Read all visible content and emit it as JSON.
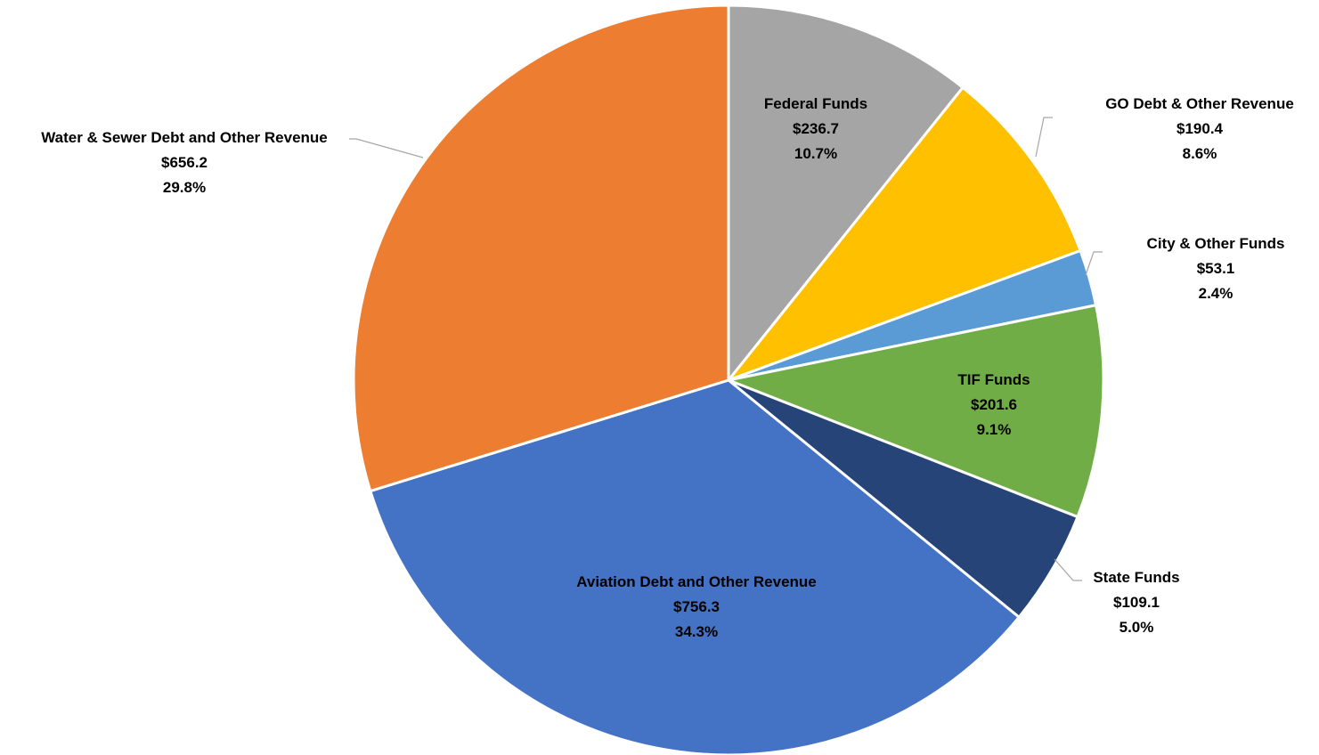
{
  "chart_data": {
    "type": "pie",
    "title": "",
    "legend": "none",
    "slices": [
      {
        "label": "Federal Funds",
        "value_label": "$236.7",
        "percent_label": "10.7%",
        "value": 236.7,
        "percent": 10.7,
        "color": "#A5A5A5"
      },
      {
        "label": "GO Debt & Other Revenue",
        "value_label": "$190.4",
        "percent_label": "8.6%",
        "value": 190.4,
        "percent": 8.6,
        "color": "#FFC000"
      },
      {
        "label": "City & Other Funds",
        "value_label": "$53.1",
        "percent_label": "2.4%",
        "value": 53.1,
        "percent": 2.4,
        "color": "#5B9BD5"
      },
      {
        "label": "TIF Funds",
        "value_label": "$201.6",
        "percent_label": "9.1%",
        "value": 201.6,
        "percent": 9.1,
        "color": "#70AD47"
      },
      {
        "label": "State Funds",
        "value_label": "$109.1",
        "percent_label": "5.0%",
        "value": 109.1,
        "percent": 5.0,
        "color": "#264478"
      },
      {
        "label": "Aviation Debt and Other Revenue",
        "value_label": "$756.3",
        "percent_label": "34.3%",
        "value": 756.3,
        "percent": 34.3,
        "color": "#4472C4"
      },
      {
        "label": "Water & Sewer Debt and Other Revenue",
        "value_label": "$656.2",
        "percent_label": "29.8%",
        "value": 656.2,
        "percent": 29.8,
        "color": "#ED7D31"
      }
    ]
  }
}
